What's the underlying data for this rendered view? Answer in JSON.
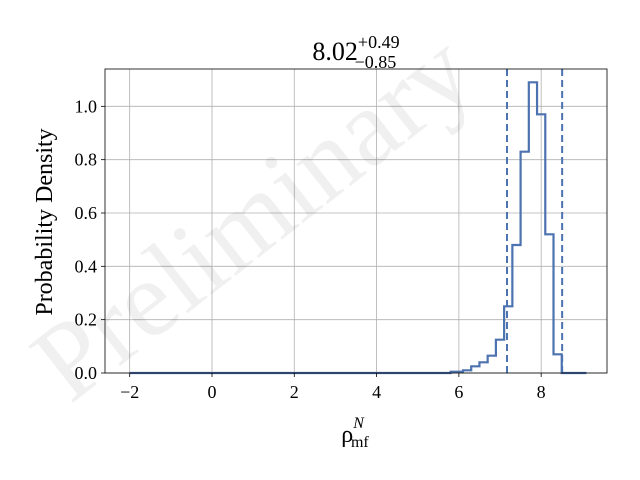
{
  "chart_data": {
    "type": "histogram",
    "title": {
      "main": "8.02",
      "sup": "+0.49",
      "sub": "−0.85"
    },
    "xlabel": {
      "base": "ρ",
      "sup": "N",
      "sub": "mf"
    },
    "ylabel": "Probability Density",
    "xlim": [
      -2.6,
      9.6
    ],
    "ylim": [
      0,
      1.14
    ],
    "x_ticks": [
      -2,
      0,
      2,
      4,
      6,
      8
    ],
    "x_tick_labels": [
      "−2",
      "0",
      "2",
      "4",
      "6",
      "8"
    ],
    "y_ticks": [
      0.0,
      0.2,
      0.4,
      0.6,
      0.8,
      1.0
    ],
    "y_tick_labels": [
      "0.0",
      "0.2",
      "0.4",
      "0.6",
      "0.8",
      "1.0"
    ],
    "grid": true,
    "color": "#4c72b0",
    "bin_edges": [
      -2.0,
      5.8,
      6.1,
      6.3,
      6.5,
      6.7,
      6.9,
      7.1,
      7.3,
      7.5,
      7.7,
      7.9,
      8.1,
      8.3,
      8.5,
      8.7,
      8.9,
      9.1
    ],
    "densities": [
      0.0,
      0.005,
      0.01,
      0.025,
      0.04,
      0.065,
      0.125,
      0.25,
      0.48,
      0.83,
      1.09,
      0.97,
      0.52,
      0.07,
      0.0,
      0.0,
      0.0
    ],
    "vlines": [
      7.17,
      8.51
    ],
    "watermark": "Preliminary"
  }
}
